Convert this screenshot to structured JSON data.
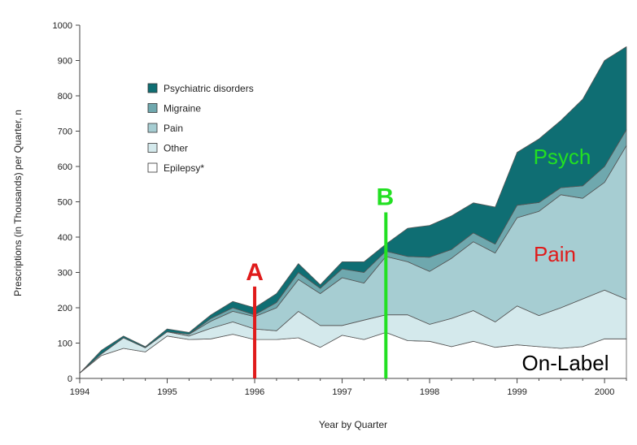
{
  "chart_data": {
    "type": "area",
    "stacked": true,
    "xlabel": "Year by Quarter",
    "ylabel": "Prescriptions (in Thousands) per Quarter, n",
    "ylim": [
      0,
      1000
    ],
    "xlim": [
      1994,
      2000.25
    ],
    "yticks": [
      "0",
      "100",
      "200",
      "300",
      "400",
      "500",
      "600",
      "700",
      "800",
      "900",
      "1000"
    ],
    "xticks": [
      "1994",
      "1995",
      "1996",
      "1997",
      "1998",
      "1999",
      "2000"
    ],
    "x": [
      1994,
      1994.25,
      1994.5,
      1994.75,
      1995,
      1995.25,
      1995.5,
      1995.75,
      1996,
      1996.25,
      1996.5,
      1996.75,
      1997,
      1997.25,
      1997.5,
      1997.75,
      1998,
      1998.25,
      1998.5,
      1998.75,
      1999,
      1999.25,
      1999.5,
      1999.75,
      2000,
      2000.25
    ],
    "series": [
      {
        "name": "Epilepsy*",
        "color": "#ffffff",
        "values": [
          15,
          65,
          85,
          75,
          120,
          110,
          112,
          125,
          110,
          110,
          115,
          88,
          122,
          110,
          130,
          107,
          105,
          90,
          105,
          88,
          95,
          90,
          85,
          90,
          112,
          112
        ]
      },
      {
        "name": "Other",
        "color": "#d4e9ec",
        "values": [
          0,
          5,
          30,
          12,
          12,
          10,
          30,
          35,
          30,
          25,
          75,
          62,
          28,
          55,
          50,
          73,
          48,
          80,
          87,
          72,
          110,
          88,
          115,
          135,
          138,
          112
        ]
      },
      {
        "name": "Pain",
        "color": "#a6cdd2",
        "values": [
          0,
          0,
          0,
          0,
          0,
          5,
          20,
          30,
          35,
          65,
          90,
          90,
          135,
          105,
          165,
          150,
          150,
          170,
          195,
          195,
          250,
          295,
          320,
          285,
          305,
          435
        ]
      },
      {
        "name": "Migraine",
        "color": "#6fa8ae",
        "values": [
          0,
          0,
          0,
          0,
          0,
          0,
          8,
          10,
          5,
          15,
          20,
          15,
          25,
          30,
          15,
          15,
          40,
          25,
          25,
          25,
          35,
          25,
          20,
          35,
          45,
          45
        ]
      },
      {
        "name": "Psychiatric disorders",
        "color": "#0f6e73",
        "values": [
          0,
          10,
          5,
          3,
          8,
          5,
          10,
          18,
          20,
          25,
          25,
          10,
          20,
          30,
          20,
          80,
          90,
          95,
          85,
          105,
          150,
          180,
          190,
          245,
          300,
          235
        ]
      }
    ],
    "legend_position": "top-left",
    "grid": false,
    "annotations": {
      "line_a": {
        "label": "A",
        "x": 1996,
        "y_from": 0,
        "y_to": 260,
        "color": "#e01b1b"
      },
      "line_b": {
        "label": "B",
        "x": 1997.5,
        "y_from": 0,
        "y_to": 470,
        "color": "#22e022"
      },
      "psych": {
        "text": "Psych",
        "color": "#22e022"
      },
      "pain": {
        "text": "Pain",
        "color": "#e01b1b"
      },
      "onlabel": {
        "text": "On-Label",
        "color": "#000000"
      }
    }
  }
}
